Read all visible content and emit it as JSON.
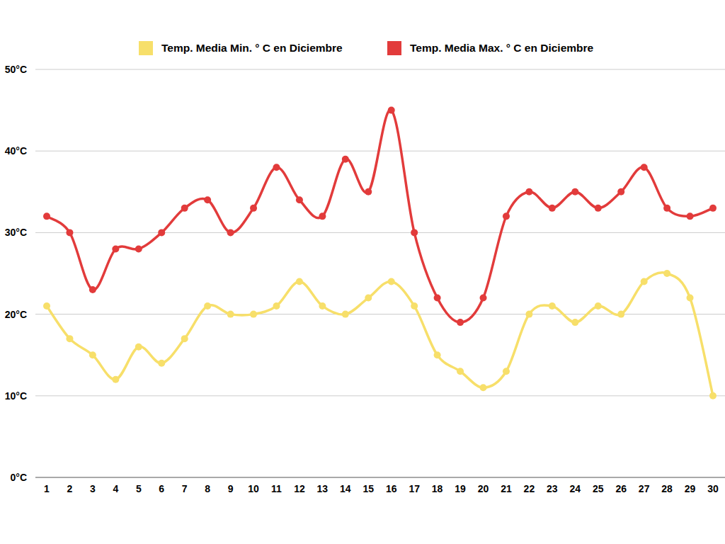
{
  "chart_data": {
    "type": "line",
    "categories": [
      "1",
      "2",
      "3",
      "4",
      "5",
      "6",
      "7",
      "8",
      "9",
      "10",
      "11",
      "12",
      "13",
      "14",
      "15",
      "16",
      "17",
      "18",
      "19",
      "20",
      "21",
      "22",
      "23",
      "24",
      "25",
      "26",
      "27",
      "28",
      "29",
      "30"
    ],
    "series": [
      {
        "name": "Temp. Media Min. ° C en Diciembre",
        "color": "#f7df6a",
        "values": [
          21,
          17,
          15,
          12,
          16,
          14,
          17,
          21,
          20,
          20,
          21,
          24,
          21,
          20,
          22,
          24,
          21,
          15,
          13,
          11,
          13,
          20,
          21,
          19,
          21,
          20,
          24,
          25,
          22,
          10
        ]
      },
      {
        "name": "Temp. Media Max. ° C en Diciembre",
        "color": "#e23b3b",
        "values": [
          32,
          30,
          23,
          28,
          28,
          30,
          33,
          34,
          30,
          33,
          38,
          34,
          32,
          39,
          35,
          45,
          30,
          22,
          19,
          22,
          32,
          35,
          33,
          35,
          33,
          35,
          38,
          33,
          32,
          33
        ]
      }
    ],
    "ylim": [
      0,
      50
    ],
    "yticks": [
      {
        "value": 0,
        "label": "0°C"
      },
      {
        "value": 10,
        "label": "10°C"
      },
      {
        "value": 20,
        "label": "20°C"
      },
      {
        "value": 30,
        "label": "30°C"
      },
      {
        "value": 40,
        "label": "40°C"
      },
      {
        "value": 50,
        "label": "50°C"
      }
    ],
    "grid": true,
    "legend": "top",
    "marker": "circle",
    "line_style": "solid"
  }
}
